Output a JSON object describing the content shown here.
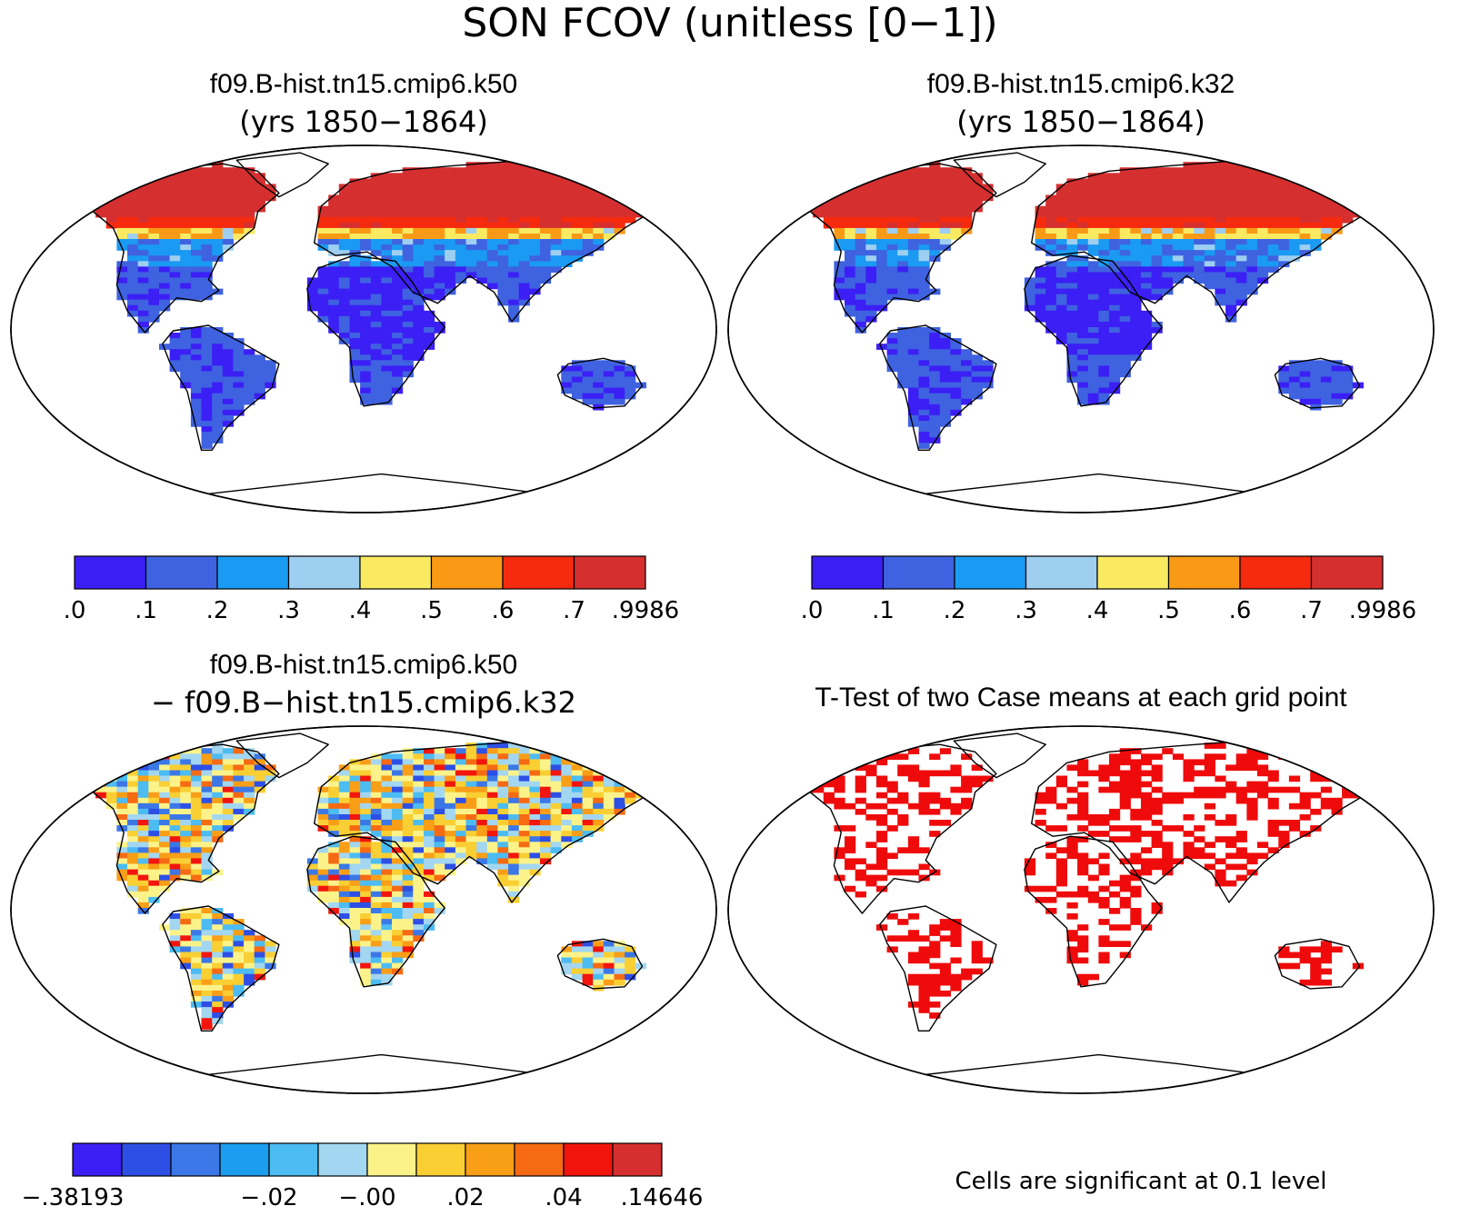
{
  "figure": {
    "title": "SON FCOV (unitless [0−1])"
  },
  "panels": [
    {
      "id": "k50",
      "title": "f09.B-hist.tn15.cmip6.k50",
      "subtitle": "(yrs 1850−1864)",
      "type": "field",
      "colorbar": {
        "colors": [
          "#3b1ff5",
          "#3f62e0",
          "#1a9af2",
          "#9ecff0",
          "#f9ea62",
          "#f99a16",
          "#f52a0e",
          "#d52f2f"
        ],
        "labels": [
          ".0",
          ".1",
          ".2",
          ".3",
          ".4",
          ".5",
          ".6",
          ".7",
          ".9986"
        ]
      }
    },
    {
      "id": "k32",
      "title": "f09.B-hist.tn15.cmip6.k32",
      "subtitle": "(yrs 1850−1864)",
      "type": "field",
      "colorbar": {
        "colors": [
          "#3b1ff5",
          "#3f62e0",
          "#1a9af2",
          "#9ecff0",
          "#f9ea62",
          "#f99a16",
          "#f52a0e",
          "#d52f2f"
        ],
        "labels": [
          ".0",
          ".1",
          ".2",
          ".3",
          ".4",
          ".5",
          ".6",
          ".7",
          ".9986"
        ]
      }
    },
    {
      "id": "diff",
      "title": "f09.B-hist.tn15.cmip6.k50",
      "subtitle": "− f09.B−hist.tn15.cmip6.k32",
      "type": "difference",
      "colorbar": {
        "colors": [
          "#3b1ff5",
          "#2e4fe6",
          "#3b77e6",
          "#1c9ef0",
          "#4cbcf2",
          "#a3d6f0",
          "#fbf38a",
          "#f9cf33",
          "#f99e17",
          "#f66a13",
          "#f2150d",
          "#d52f2f"
        ],
        "labels": [
          "−.38193",
          "",
          "",
          "",
          "−.02",
          "",
          "−.00",
          "",
          ".02",
          "",
          ".04",
          "",
          ".14646"
        ]
      }
    },
    {
      "id": "ttest",
      "title": "T-Test of two Case means at each grid point",
      "subtitle": "",
      "type": "significance",
      "note": "Cells are significant at 0.1 level",
      "color": "#ef0b0b"
    }
  ]
}
